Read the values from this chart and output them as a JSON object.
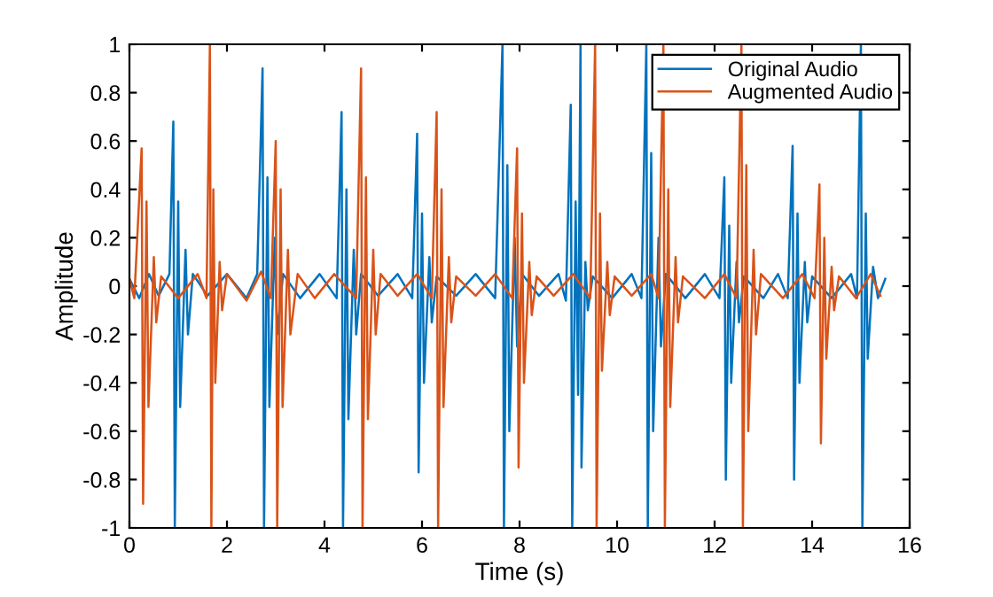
{
  "chart_data": {
    "type": "line",
    "xlabel": "Time (s)",
    "ylabel": "Amplitude",
    "xlim": [
      0,
      16
    ],
    "xticks": [
      0,
      2,
      4,
      6,
      8,
      10,
      12,
      14,
      16
    ],
    "ylim": [
      -1,
      1
    ],
    "yticks": [
      -1,
      -0.8,
      -0.6,
      -0.4,
      -0.2,
      0,
      0.2,
      0.4,
      0.6,
      0.8,
      1
    ],
    "grid": false,
    "legend": "top right",
    "line_style": "solid",
    "marker": "none",
    "series": [
      {
        "name": "Original Audio",
        "color": "#0072bd",
        "x": [
          0,
          0.2,
          0.4,
          0.6,
          0.82,
          0.9,
          0.93,
          1.0,
          1.04,
          1.15,
          1.2,
          1.3,
          1.6,
          2.0,
          2.4,
          2.62,
          2.73,
          2.76,
          2.83,
          2.87,
          2.98,
          3.03,
          3.15,
          3.5,
          3.9,
          4.25,
          4.35,
          4.38,
          4.45,
          4.49,
          4.6,
          4.65,
          4.75,
          5.1,
          5.5,
          5.8,
          5.9,
          5.93,
          6.0,
          6.04,
          6.15,
          6.2,
          6.3,
          6.7,
          7.1,
          7.5,
          7.65,
          7.68,
          7.75,
          7.79,
          7.9,
          7.95,
          8.05,
          8.4,
          8.8,
          8.95,
          9.05,
          9.08,
          9.15,
          9.2,
          9.25,
          9.27,
          9.35,
          9.4,
          9.5,
          9.9,
          10.3,
          10.5,
          10.6,
          10.63,
          10.7,
          10.74,
          10.85,
          10.9,
          11.0,
          11.4,
          11.8,
          12.1,
          12.2,
          12.23,
          12.3,
          12.34,
          12.45,
          12.5,
          12.6,
          13.0,
          13.3,
          13.5,
          13.6,
          13.63,
          13.7,
          13.74,
          13.85,
          13.9,
          14.0,
          14.4,
          14.8,
          14.92,
          15.0,
          15.03,
          15.1,
          15.14,
          15.25,
          15.35,
          15.5
        ],
        "values": [
          0.03,
          -0.05,
          0.05,
          -0.04,
          0.05,
          0.68,
          -1,
          0.35,
          -0.5,
          0.15,
          -0.2,
          0.05,
          -0.04,
          0.05,
          -0.05,
          0.05,
          0.9,
          -1,
          0.45,
          -0.5,
          0.2,
          -0.2,
          0.05,
          -0.05,
          0.05,
          -0.05,
          0.72,
          -1,
          0.4,
          -0.55,
          0.15,
          -0.2,
          0.05,
          -0.04,
          0.05,
          -0.05,
          0.63,
          -0.77,
          0.3,
          -0.4,
          0.12,
          -0.15,
          0.04,
          -0.04,
          0.05,
          -0.05,
          1,
          -1,
          0.5,
          -0.6,
          0.2,
          -0.25,
          0.05,
          -0.04,
          0.05,
          -0.06,
          0.75,
          -1,
          0.35,
          -0.45,
          1,
          -0.75,
          0.1,
          -0.1,
          0.04,
          -0.05,
          0.05,
          -0.05,
          1,
          -1,
          0.55,
          -0.6,
          0.2,
          -0.25,
          0.05,
          -0.05,
          0.05,
          -0.05,
          0.45,
          -0.8,
          0.25,
          -0.4,
          0.1,
          -0.15,
          0.04,
          -0.05,
          0.05,
          -0.05,
          0.58,
          -0.8,
          0.3,
          -0.4,
          0.1,
          -0.15,
          0.04,
          -0.05,
          0.05,
          -0.05,
          1,
          -1,
          0.3,
          -0.3,
          0.08,
          -0.05,
          0.03
        ]
      },
      {
        "name": "Augmented Audio",
        "color": "#d95319",
        "x": [
          0,
          0.1,
          0.25,
          0.28,
          0.35,
          0.39,
          0.5,
          0.55,
          0.65,
          1.0,
          1.4,
          1.58,
          1.65,
          1.68,
          1.72,
          1.76,
          1.85,
          1.9,
          2.0,
          2.4,
          2.7,
          2.9,
          3.0,
          3.03,
          3.1,
          3.14,
          3.25,
          3.3,
          3.45,
          3.8,
          4.2,
          4.65,
          4.75,
          4.78,
          4.85,
          4.89,
          5.0,
          5.05,
          5.15,
          5.5,
          5.9,
          6.2,
          6.3,
          6.33,
          6.4,
          6.44,
          6.55,
          6.6,
          6.7,
          7.1,
          7.5,
          7.85,
          7.95,
          7.98,
          8.05,
          8.09,
          8.2,
          8.25,
          8.35,
          8.7,
          9.1,
          9.45,
          9.55,
          9.58,
          9.65,
          9.69,
          9.8,
          9.85,
          9.95,
          10.3,
          10.7,
          10.85,
          10.95,
          10.98,
          11.05,
          11.09,
          11.2,
          11.25,
          11.35,
          11.8,
          12.2,
          12.45,
          12.55,
          12.58,
          12.65,
          12.69,
          12.8,
          12.85,
          12.95,
          13.4,
          13.8,
          14.05,
          14.15,
          14.18,
          14.25,
          14.29,
          14.4,
          14.45,
          14.55,
          14.9,
          15.2,
          15.4
        ],
        "values": [
          0.03,
          -0.05,
          0.57,
          -0.9,
          0.35,
          -0.5,
          0.12,
          -0.15,
          0.04,
          -0.05,
          0.05,
          -0.05,
          1,
          -1,
          0.4,
          -0.4,
          0.1,
          -0.1,
          0.05,
          -0.06,
          0.06,
          -0.05,
          0.6,
          -1,
          0.4,
          -0.5,
          0.15,
          -0.2,
          0.05,
          -0.05,
          0.05,
          -0.05,
          0.9,
          -1,
          0.45,
          -0.55,
          0.15,
          -0.2,
          0.05,
          -0.04,
          0.05,
          -0.05,
          0.72,
          -1,
          0.4,
          -0.5,
          0.12,
          -0.15,
          0.04,
          -0.04,
          0.05,
          -0.05,
          0.57,
          -0.75,
          0.3,
          -0.4,
          0.1,
          -0.12,
          0.04,
          -0.04,
          0.05,
          -0.05,
          1,
          -1,
          0.3,
          -0.35,
          0.1,
          -0.12,
          0.04,
          -0.04,
          0.05,
          -0.05,
          1,
          -1,
          0.4,
          -0.5,
          0.12,
          -0.15,
          0.04,
          -0.05,
          0.05,
          -0.05,
          1,
          -1,
          0.5,
          -0.6,
          0.15,
          -0.2,
          0.05,
          -0.05,
          0.05,
          -0.05,
          0.42,
          -0.65,
          0.2,
          -0.3,
          0.08,
          -0.1,
          0.04,
          -0.05,
          0.05,
          -0.04
        ]
      }
    ]
  }
}
